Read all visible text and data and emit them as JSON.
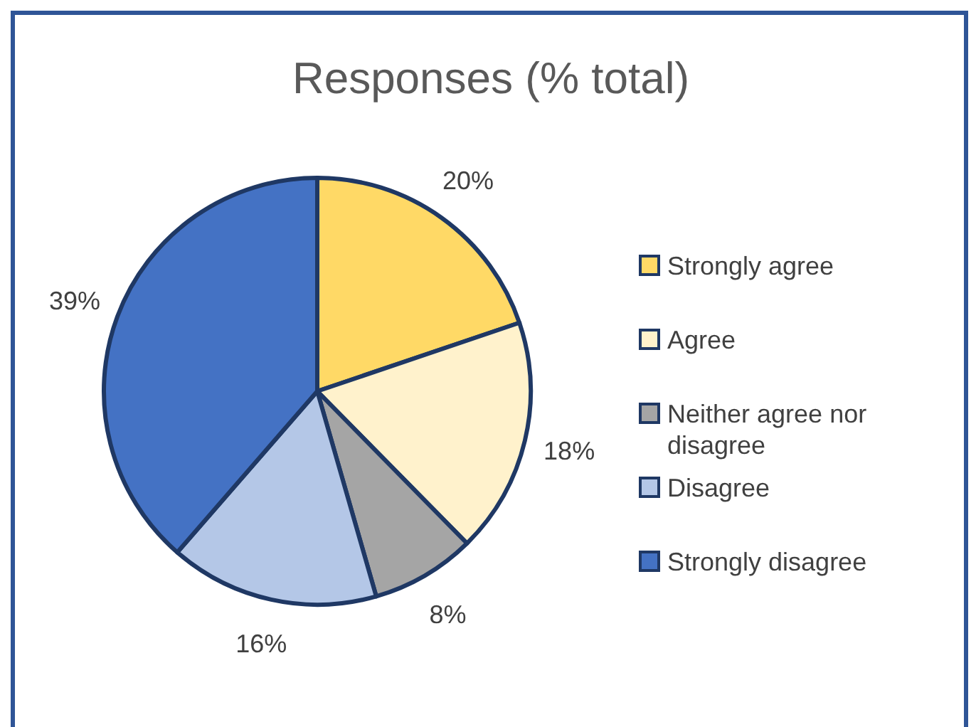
{
  "chart_data": {
    "type": "pie",
    "title": "Responses (% total)",
    "categories": [
      "Strongly agree",
      "Agree",
      "Neither agree nor disagree",
      "Disagree",
      "Strongly disagree"
    ],
    "values": [
      20,
      18,
      8,
      16,
      39
    ],
    "colors": [
      "#ffd966",
      "#fff2cc",
      "#a5a5a5",
      "#b4c7e7",
      "#4472c4"
    ],
    "value_labels": [
      "20%",
      "18%",
      "8%",
      "16%",
      "39%"
    ],
    "legend": "right"
  }
}
